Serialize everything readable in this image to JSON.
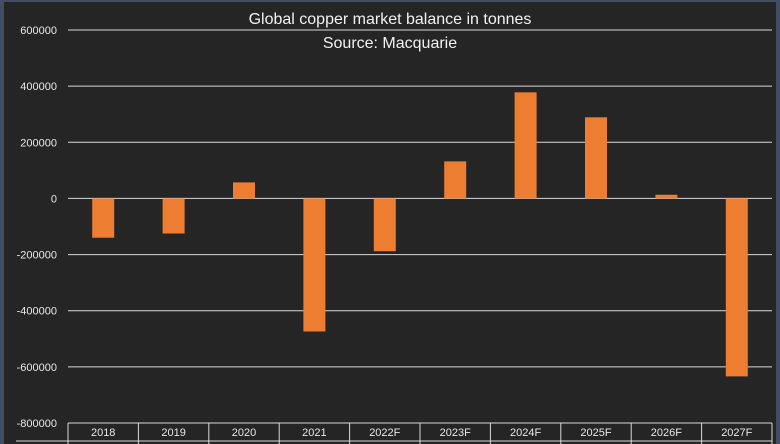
{
  "chart_data": {
    "type": "bar",
    "title": "Global copper market balance in tonnes",
    "subtitle": "Source: Macquarie",
    "xlabel": "",
    "ylabel": "",
    "categories": [
      "2018",
      "2019",
      "2020",
      "2021",
      "2022F",
      "2023F",
      "2024F",
      "2025F",
      "2026F",
      "2027F"
    ],
    "values": [
      -140000,
      -125000,
      57000,
      -474000,
      -188000,
      132000,
      378000,
      289000,
      13000,
      -634000
    ],
    "ylim": [
      -800000,
      600000
    ],
    "yticks": [
      "600000",
      "400000",
      "200000",
      "0",
      "-200000",
      "-400000",
      "-600000",
      "-800000"
    ],
    "ytick_values": [
      600000,
      400000,
      200000,
      0,
      -200000,
      -400000,
      -600000,
      -800000
    ],
    "grid": true,
    "legend": "none",
    "colors": {
      "bar": "#ed7d31",
      "background": "#252525",
      "grid": "#d9d9d9",
      "frame": "#3f4e63"
    }
  }
}
